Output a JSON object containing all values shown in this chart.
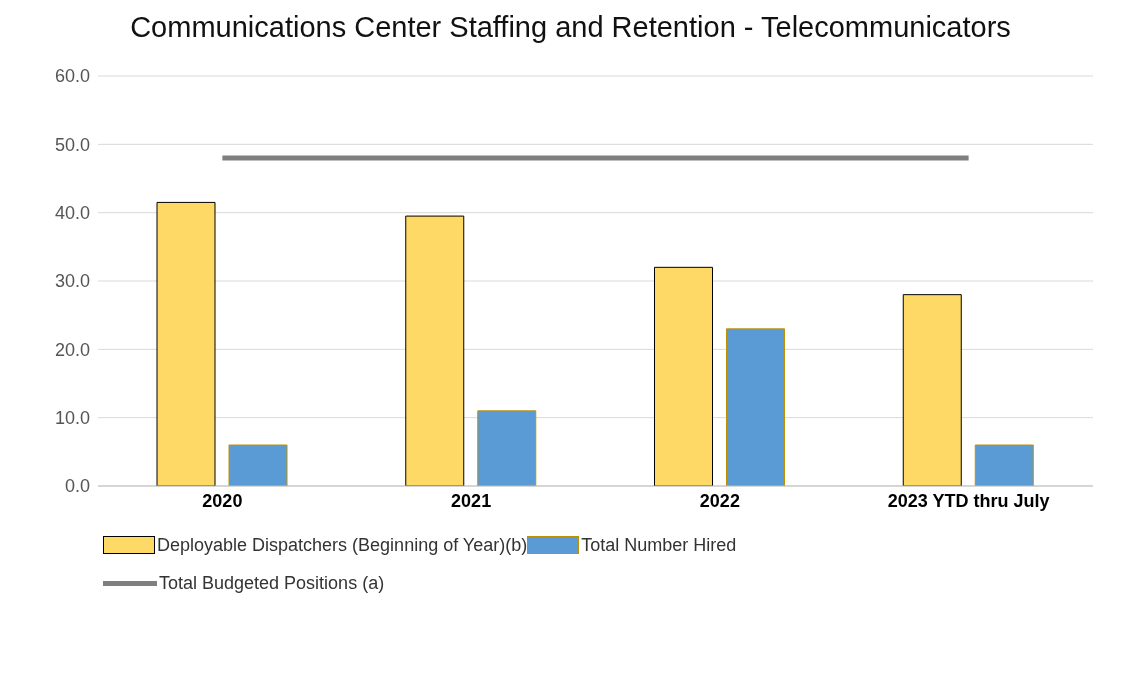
{
  "chart_data": {
    "type": "bar",
    "title": "Communications Center Staffing and Retention - Telecommunicators",
    "categories": [
      "2020",
      "2021",
      "2022",
      "2023 YTD thru July"
    ],
    "series": [
      {
        "name": "Deployable Dispatchers (Beginning of Year)(b)",
        "color": "#ffd966",
        "values": [
          41.5,
          39.5,
          32,
          28
        ]
      },
      {
        "name": "Total Number Hired",
        "color": "#5b9bd5",
        "values": [
          6,
          11,
          23,
          6
        ]
      },
      {
        "name": "Total Budgeted Positions (a)",
        "type": "line",
        "color": "#7f7f7f",
        "values": [
          48,
          48,
          48,
          48
        ]
      }
    ],
    "ylim": [
      0,
      60
    ],
    "yticks": [
      {
        "value": 0,
        "label": "0.0"
      },
      {
        "value": 10,
        "label": "10.0"
      },
      {
        "value": 20,
        "label": "20.0"
      },
      {
        "value": 30,
        "label": "30.0"
      },
      {
        "value": 40,
        "label": "40.0"
      },
      {
        "value": 50,
        "label": "50.0"
      },
      {
        "value": 60,
        "label": "60.0"
      }
    ],
    "grid": "y",
    "legend": "bottom",
    "marker": "none",
    "line_style": "solid"
  }
}
